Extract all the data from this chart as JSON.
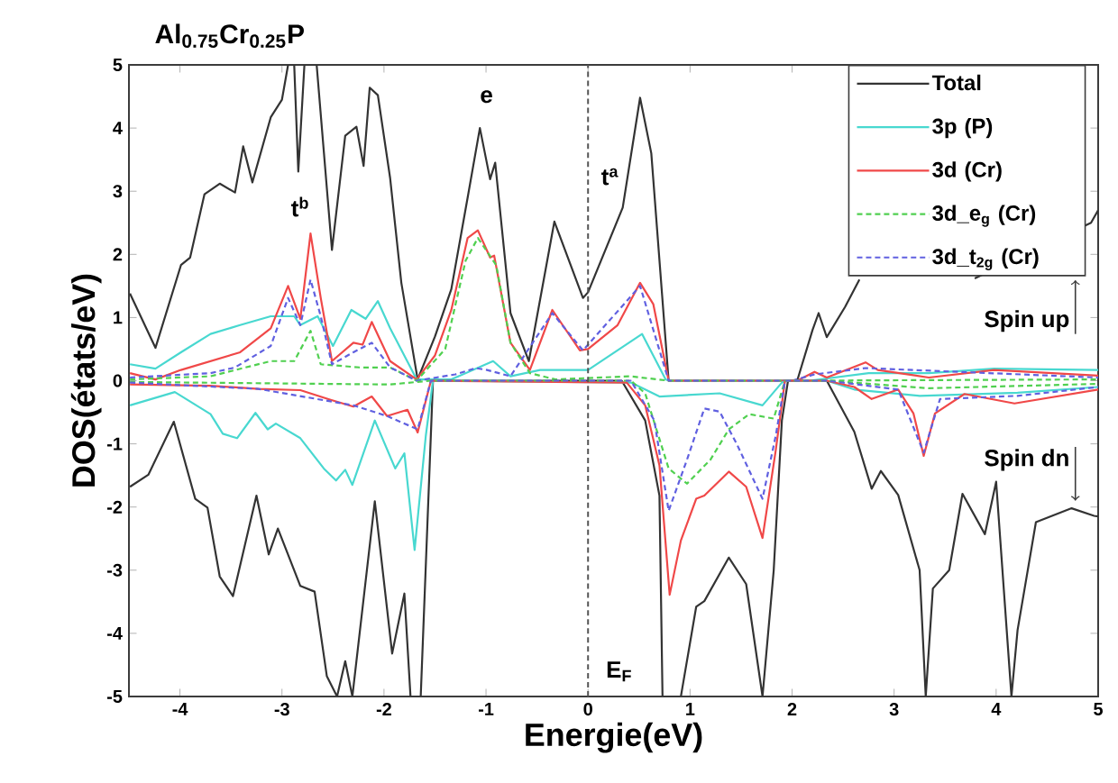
{
  "chart_data": {
    "type": "line",
    "title": "Al$_{0.75}$Cr$_{0.25}$P",
    "xlabel": "Energie(eV)",
    "ylabel": "DOS(états/eV)",
    "xlim": [
      -4.5,
      5
    ],
    "ylim": [
      -5,
      5
    ],
    "xticks": [
      -4,
      -3,
      -2,
      -1,
      0,
      1,
      2,
      3,
      4,
      5
    ],
    "yticks": [
      -5,
      -4,
      -3,
      -2,
      -1,
      0,
      1,
      2,
      3,
      4,
      5
    ],
    "legend": "top right",
    "grid": false,
    "ref_lines": [
      {
        "axis": "x",
        "value": 0,
        "color": "#555555",
        "line_style": "dashed"
      }
    ],
    "annotations": [
      "t$^{b}$",
      "e",
      "t$^{a}$",
      "E$_{F}$",
      "Spin up",
      "Spin dn"
    ],
    "series": [
      {
        "name": "Total",
        "color": "#333333",
        "line_style": "solid",
        "x": [
          -4.49,
          -4.24,
          -3.99,
          -3.9,
          -3.76,
          -3.61,
          -3.46,
          -3.38,
          -3.29,
          -3.11,
          -3.0,
          -2.94,
          -2.88,
          -2.84,
          -2.78,
          -2.66,
          -2.51,
          -2.38,
          -2.27,
          -2.2,
          -2.14,
          -2.06,
          -1.94,
          -1.83,
          -1.67,
          -1.5,
          -1.34,
          -1.18,
          -1.06,
          -0.96,
          -0.91,
          -0.76,
          -0.58,
          -0.33,
          -0.05,
          0.0,
          0.34,
          0.51,
          0.62,
          0.79,
          1.5,
          2.05,
          2.2,
          2.26,
          2.34,
          2.52,
          2.66,
          3.2,
          3.79,
          4.93,
          5.0
        ],
        "values": [
          1.38,
          0.52,
          1.83,
          1.95,
          2.95,
          3.12,
          2.98,
          3.71,
          3.14,
          4.17,
          4.45,
          5,
          5,
          3.31,
          5,
          5,
          2.07,
          3.88,
          4.02,
          3.4,
          4.64,
          4.52,
          3.21,
          1.55,
          0.02,
          0.7,
          1.45,
          2.9,
          4.0,
          3.19,
          3.45,
          1.07,
          0.31,
          2.52,
          1.31,
          1.4,
          2.74,
          4.48,
          3.6,
          0.0,
          0.0,
          0.0,
          0.8,
          1.07,
          0.69,
          1.17,
          1.6,
          null,
          1.62,
          2.5,
          2.7
        ]
      },
      {
        "name": "3p (P)",
        "color": "#48d8d0",
        "line_style": "solid",
        "x": [
          -4.49,
          -4.24,
          -3.99,
          -3.7,
          -3.41,
          -3.11,
          -2.88,
          -2.82,
          -2.65,
          -2.5,
          -2.32,
          -2.18,
          -2.06,
          -1.94,
          -1.68,
          -1.34,
          -0.93,
          -0.76,
          -0.47,
          0.0,
          0.53,
          0.76,
          0.79,
          1.5,
          2.17,
          2.75,
          3.34,
          3.98,
          5.0
        ],
        "values": [
          0.26,
          0.19,
          0.45,
          0.74,
          0.88,
          1.02,
          1.02,
          0.88,
          1.02,
          0.55,
          1.12,
          0.98,
          1.26,
          0.83,
          0.02,
          0.02,
          0.31,
          0.07,
          0.17,
          0.17,
          0.74,
          0.02,
          0.0,
          0.0,
          0.0,
          0.12,
          0.12,
          0.19,
          0.17
        ]
      },
      {
        "name": "3d (Cr)",
        "color": "#f04848",
        "line_style": "solid",
        "x": [
          -4.49,
          -4.24,
          -3.99,
          -3.41,
          -3.11,
          -2.94,
          -2.82,
          -2.72,
          -2.62,
          -2.51,
          -2.3,
          -2.21,
          -2.12,
          -1.94,
          -1.68,
          -1.5,
          -1.34,
          -1.18,
          -1.08,
          -0.96,
          -0.92,
          -0.76,
          -0.57,
          -0.35,
          -0.08,
          0.0,
          0.29,
          0.51,
          0.64,
          0.79,
          1.5,
          2.05,
          2.22,
          2.34,
          2.72,
          2.84,
          3.34,
          3.98,
          5.0
        ],
        "values": [
          0.12,
          0.02,
          0.17,
          0.45,
          0.83,
          1.5,
          0.98,
          2.33,
          1.31,
          0.31,
          0.6,
          0.57,
          0.93,
          0.31,
          0.02,
          0.4,
          1.12,
          2.26,
          2.38,
          1.95,
          1.98,
          0.6,
          0.17,
          1.12,
          0.48,
          0.5,
          0.88,
          1.55,
          1.21,
          0.0,
          0.0,
          0.0,
          0.14,
          0.05,
          0.29,
          0.17,
          0.05,
          0.17,
          0.08
        ]
      },
      {
        "name": "3d_e$_{g}$ (Cr)",
        "color": "#50d050",
        "line_style": "dashed",
        "x": [
          -4.49,
          -3.7,
          -3.11,
          -2.88,
          -2.72,
          -2.62,
          -2.24,
          -1.94,
          -1.68,
          -1.4,
          -1.2,
          -1.08,
          -0.9,
          -0.76,
          -0.57,
          -0.32,
          0.41,
          0.79,
          2.0,
          5.0
        ],
        "values": [
          0.02,
          0.07,
          0.31,
          0.31,
          0.79,
          0.26,
          0.21,
          0.21,
          0.0,
          0.5,
          1.9,
          2.26,
          1.83,
          0.6,
          0.12,
          0.02,
          0.07,
          0.0,
          0.0,
          0.02
        ]
      },
      {
        "name": "3d_t$_{2g}$ (Cr)",
        "color": "#6060e0",
        "line_style": "dashed",
        "x": [
          -4.49,
          -3.7,
          -3.46,
          -3.11,
          -2.94,
          -2.82,
          -2.72,
          -2.62,
          -2.51,
          -2.3,
          -2.12,
          -1.94,
          -1.68,
          -1.3,
          -1.1,
          -0.99,
          -0.76,
          -0.35,
          -0.05,
          0.51,
          0.79,
          2.0,
          2.22,
          2.72,
          5.0
        ],
        "values": [
          0.05,
          0.12,
          0.21,
          0.55,
          1.31,
          0.88,
          1.6,
          1.02,
          0.26,
          0.45,
          0.6,
          0.21,
          0.0,
          0.1,
          0.2,
          0.17,
          0.07,
          1.07,
          0.48,
          1.5,
          0.0,
          0.0,
          0.1,
          0.2,
          0.05
        ]
      },
      {
        "color": "#333333",
        "line_style": "solid",
        "x": [
          -4.49,
          -4.31,
          -4.06,
          -3.85,
          -3.73,
          -3.61,
          -3.48,
          -3.25,
          -3.13,
          -3.04,
          -2.82,
          -2.68,
          -2.56,
          -2.46,
          -2.38,
          -2.31,
          -2.09,
          -1.92,
          -1.8,
          -1.74,
          -1.64,
          -1.52,
          0.33,
          0.56,
          0.7,
          0.73,
          0.91,
          1.06,
          1.14,
          1.38,
          1.55,
          1.71,
          1.82,
          1.9,
          1.96,
          2.34,
          2.61,
          2.78,
          2.87,
          3.04,
          3.25,
          3.31,
          3.38,
          3.54,
          3.67,
          3.89,
          4.0,
          4.15,
          4.21,
          4.39,
          4.74,
          4.96,
          5.0
        ],
        "values": [
          -1.68,
          -1.49,
          -0.65,
          -1.87,
          -2.01,
          -3.1,
          -3.41,
          -1.82,
          -2.75,
          -2.34,
          -3.25,
          -3.34,
          -4.68,
          -5,
          -4.44,
          -5,
          -1.91,
          -4.32,
          -3.37,
          -5,
          -5,
          0,
          0,
          -0.63,
          -1.82,
          -5,
          -5,
          -3.58,
          -3.49,
          -2.8,
          -3.22,
          -5,
          -3.0,
          -0.63,
          0,
          0,
          -0.81,
          -1.71,
          -1.43,
          -1.81,
          -3.0,
          -5,
          -3.29,
          -3.0,
          -1.79,
          -2.43,
          -1.6,
          -5,
          -3.95,
          -2.24,
          -2.02,
          -2.14,
          -2.15
        ]
      },
      {
        "color": "#48d8d0",
        "line_style": "solid",
        "x": [
          -4.49,
          -4.05,
          -3.7,
          -3.58,
          -3.44,
          -3.26,
          -3.14,
          -3.06,
          -2.82,
          -2.59,
          -2.47,
          -2.38,
          -2.31,
          -2.09,
          -1.89,
          -1.8,
          -1.7,
          -1.59,
          -1.52,
          0.42,
          0.7,
          1.29,
          1.71,
          1.9,
          1.96,
          2.34,
          2.61,
          3.25,
          4.21,
          5.0
        ],
        "values": [
          -0.39,
          -0.18,
          -0.53,
          -0.84,
          -0.91,
          -0.51,
          -0.77,
          -0.68,
          -0.91,
          -1.39,
          -1.58,
          -1.41,
          -1.65,
          -0.63,
          -1.39,
          -1.15,
          -2.68,
          -0.87,
          0,
          -0.03,
          -0.25,
          -0.2,
          -0.39,
          -0.03,
          0,
          0,
          -0.14,
          -0.24,
          -0.19,
          -0.1
        ]
      },
      {
        "color": "#f04848",
        "line_style": "solid",
        "x": [
          -4.49,
          -3.7,
          -3.23,
          -2.82,
          -2.53,
          -2.3,
          -2.12,
          -1.97,
          -1.77,
          -1.67,
          -1.54,
          0.38,
          0.56,
          0.7,
          0.8,
          0.91,
          1.06,
          1.14,
          1.38,
          1.55,
          1.71,
          1.84,
          1.93,
          2.34,
          2.61,
          2.78,
          3.04,
          3.19,
          3.29,
          3.4,
          3.69,
          4.18,
          5.0
        ],
        "values": [
          -0.06,
          -0.08,
          -0.13,
          -0.15,
          -0.3,
          -0.41,
          -0.25,
          -0.56,
          -0.46,
          -0.82,
          0,
          -0.03,
          -0.39,
          -1.34,
          -3.39,
          -2.53,
          -1.87,
          -1.82,
          -1.44,
          -1.68,
          -2.49,
          -1.1,
          0,
          0,
          -0.1,
          -0.29,
          -0.14,
          -0.52,
          -1.19,
          -0.52,
          -0.21,
          -0.36,
          -0.14
        ]
      },
      {
        "color": "#50d050",
        "line_style": "dashed",
        "x": [
          -4.49,
          -1.94,
          -1.54,
          0.42,
          0.56,
          0.79,
          0.97,
          1.2,
          1.38,
          1.58,
          1.82,
          1.93,
          2.34,
          3.34,
          5.0
        ],
        "values": [
          -0.02,
          -0.06,
          0,
          0,
          -0.2,
          -1.39,
          -1.63,
          -1.25,
          -0.77,
          -0.53,
          -0.6,
          0,
          0,
          -0.12,
          -0.05
        ]
      },
      {
        "color": "#6060e0",
        "line_style": "dashed",
        "x": [
          -4.49,
          -3.23,
          -2.3,
          -1.97,
          -1.67,
          -1.54,
          0.42,
          0.65,
          0.79,
          0.97,
          1.14,
          1.29,
          1.46,
          1.71,
          1.84,
          1.93,
          2.34,
          3.04,
          3.29,
          3.45,
          4.21,
          5.0
        ],
        "values": [
          -0.03,
          -0.13,
          -0.39,
          -0.56,
          -0.77,
          0,
          0,
          -0.63,
          -2.06,
          -1.25,
          -0.44,
          -0.49,
          -1.01,
          -1.87,
          -0.87,
          0,
          0,
          -0.14,
          -1.14,
          -0.29,
          -0.24,
          -0.1
        ]
      }
    ]
  }
}
